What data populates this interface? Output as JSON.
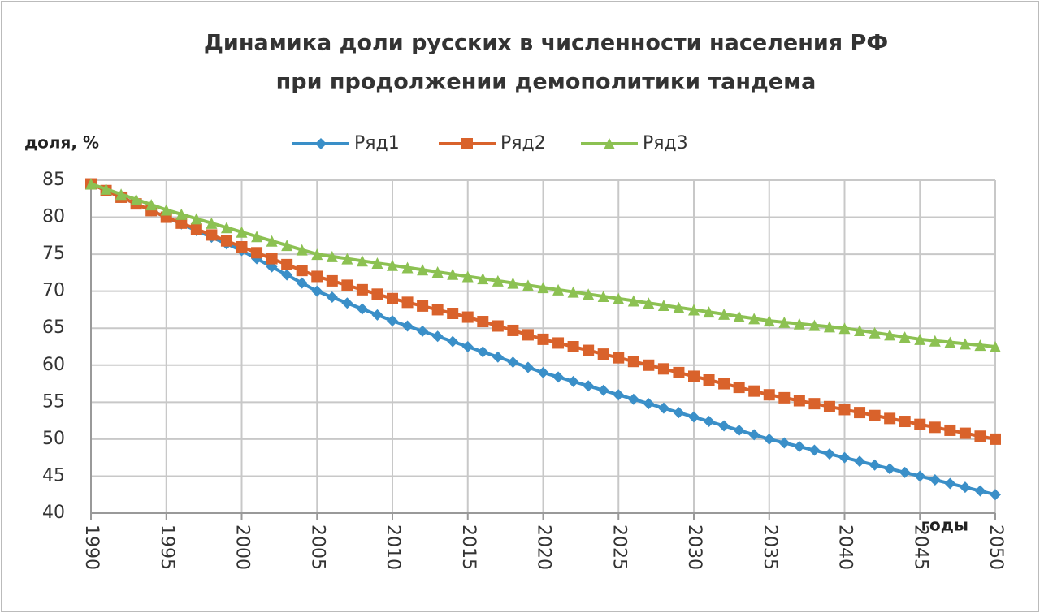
{
  "chart_data": {
    "type": "line",
    "title": [
      "Динамика доли русских в численности населения РФ",
      "при продолжении демополитики тандема"
    ],
    "y_label": "доля, %",
    "x_label": "годы",
    "x": [
      1990,
      1991,
      1992,
      1993,
      1994,
      1995,
      1996,
      1997,
      1998,
      1999,
      2000,
      2001,
      2002,
      2003,
      2004,
      2005,
      2006,
      2007,
      2008,
      2009,
      2010,
      2011,
      2012,
      2013,
      2014,
      2015,
      2016,
      2017,
      2018,
      2019,
      2020,
      2021,
      2022,
      2023,
      2024,
      2025,
      2026,
      2027,
      2028,
      2029,
      2030,
      2031,
      2032,
      2033,
      2034,
      2035,
      2036,
      2037,
      2038,
      2039,
      2040,
      2041,
      2042,
      2043,
      2044,
      2045,
      2046,
      2047,
      2048,
      2049,
      2050
    ],
    "series": [
      {
        "name": "Ряд1",
        "color": "#3a8fc8",
        "marker": "diamond",
        "values": [
          84.5,
          83.6,
          82.7,
          81.8,
          80.9,
          80,
          79.1,
          78.2,
          77.3,
          76.4,
          75.5,
          74.4,
          73.3,
          72.2,
          71.1,
          70,
          69.2,
          68.4,
          67.6,
          66.8,
          66,
          65.3,
          64.6,
          63.9,
          63.2,
          62.5,
          61.8,
          61.1,
          60.4,
          59.7,
          59,
          58.4,
          57.8,
          57.2,
          56.6,
          56,
          55.4,
          54.8,
          54.2,
          53.6,
          53,
          52.4,
          51.8,
          51.2,
          50.6,
          50,
          49.5,
          49,
          48.5,
          48,
          47.5,
          47,
          46.5,
          46,
          45.5,
          45,
          44.5,
          44,
          43.5,
          43,
          42.5
        ]
      },
      {
        "name": "Ряд2",
        "color": "#d9622b",
        "marker": "square",
        "values": [
          84.5,
          83.6,
          82.7,
          81.8,
          80.9,
          80,
          79.2,
          78.4,
          77.6,
          76.8,
          76,
          75.2,
          74.4,
          73.6,
          72.8,
          72,
          71.4,
          70.8,
          70.2,
          69.6,
          69,
          68.5,
          68,
          67.5,
          67,
          66.5,
          65.9,
          65.3,
          64.7,
          64.1,
          63.5,
          63,
          62.5,
          62,
          61.5,
          61,
          60.5,
          60,
          59.5,
          59,
          58.5,
          58,
          57.5,
          57,
          56.5,
          56,
          55.6,
          55.2,
          54.8,
          54.4,
          54,
          53.6,
          53.2,
          52.8,
          52.4,
          52,
          51.6,
          51.2,
          50.8,
          50.4,
          50
        ]
      },
      {
        "name": "Ряд3",
        "color": "#8cc152",
        "marker": "triangle",
        "values": [
          84.5,
          83.8,
          83.1,
          82.4,
          81.7,
          81,
          80.4,
          79.8,
          79.2,
          78.6,
          78,
          77.4,
          76.8,
          76.2,
          75.6,
          75,
          74.7,
          74.4,
          74.1,
          73.8,
          73.5,
          73.2,
          72.9,
          72.6,
          72.3,
          72,
          71.7,
          71.4,
          71.1,
          70.8,
          70.5,
          70.2,
          69.9,
          69.6,
          69.3,
          69,
          68.7,
          68.4,
          68.1,
          67.8,
          67.5,
          67.2,
          66.9,
          66.6,
          66.3,
          66,
          65.8,
          65.6,
          65.4,
          65.2,
          65,
          64.7,
          64.4,
          64.1,
          63.8,
          63.5,
          63.3,
          63.1,
          62.9,
          62.7,
          62.5
        ]
      }
    ],
    "xlim": [
      1990,
      2050
    ],
    "xticks": [
      1990,
      1995,
      2000,
      2005,
      2010,
      2015,
      2020,
      2025,
      2030,
      2035,
      2040,
      2045,
      2050
    ],
    "ylim": [
      40,
      85
    ],
    "yticks": [
      40,
      45,
      50,
      55,
      60,
      65,
      70,
      75,
      80,
      85
    ],
    "grid": true
  }
}
